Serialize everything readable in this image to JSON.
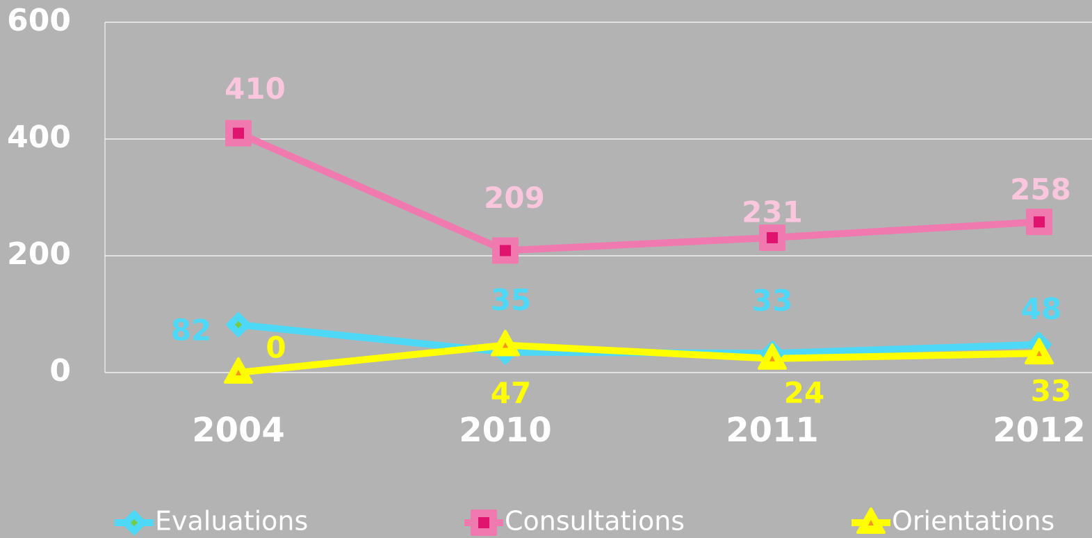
{
  "chart_data": {
    "type": "line",
    "categories": [
      "2004",
      "2010",
      "2011",
      "2012"
    ],
    "series": [
      {
        "name": "Evaluations",
        "color": "#4dd8f7",
        "marker": "diamond",
        "values": [
          82,
          35,
          33,
          48
        ]
      },
      {
        "name": "Consultations",
        "color": "#f07ab0",
        "marker": "square",
        "values": [
          410,
          209,
          231,
          258
        ]
      },
      {
        "name": "Orientations",
        "color": "#ffff00",
        "marker": "triangle",
        "values": [
          0,
          47,
          24,
          33
        ]
      }
    ],
    "ylim": [
      0,
      600
    ],
    "yticks": [
      0,
      200,
      400,
      600
    ],
    "grid": true,
    "legend": "bottom"
  }
}
